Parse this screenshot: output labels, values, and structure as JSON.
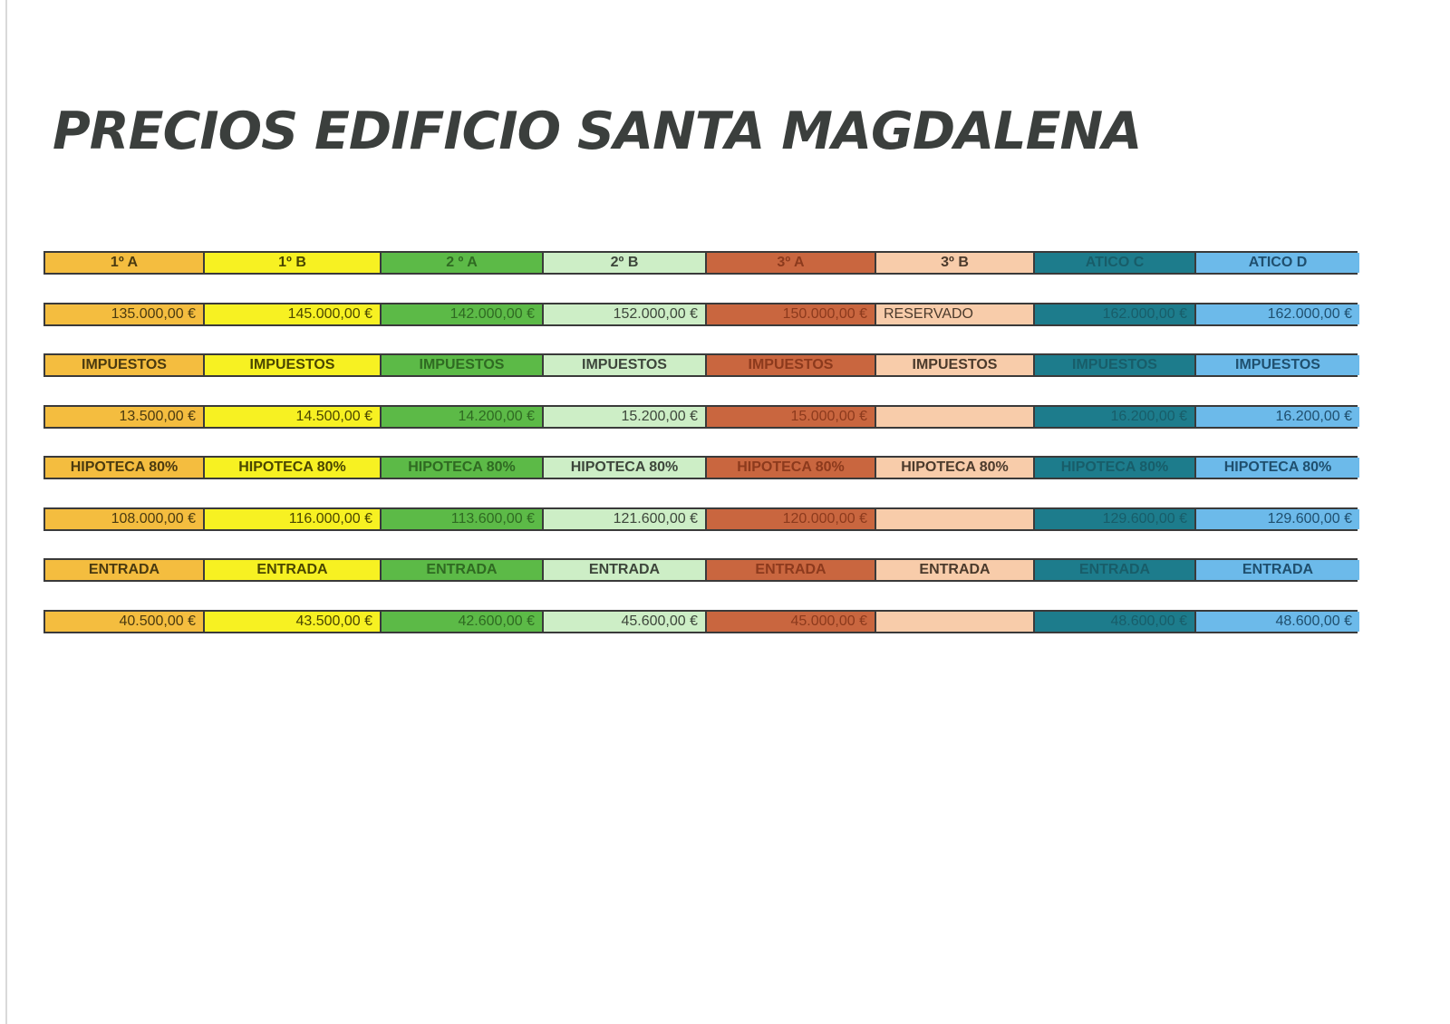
{
  "title": "PRECIOS EDIFICIO SANTA MAGDALENA",
  "units": [
    {
      "name": "1º A",
      "bg": "#f4bd3f",
      "fg": "#4a3a10"
    },
    {
      "name": "1º B",
      "bg": "#f7f122",
      "fg": "#4a4600"
    },
    {
      "name": "2º A",
      "bg": "#5cba47",
      "fg": "#2f6a22"
    },
    {
      "name": "2º B",
      "bg": "#cdeec6",
      "fg": "#3d463b"
    },
    {
      "name": "3º A",
      "bg": "#c9663f",
      "fg": "#8c3a1d"
    },
    {
      "name": "3º B",
      "bg": "#f8ccaa",
      "fg": "#4b3a2c"
    },
    {
      "name": "ATICO C",
      "bg": "#1d7c8c",
      "fg": "#185d69"
    },
    {
      "name": "ATICO D",
      "bg": "#6cbaea",
      "fg": "#1f4f6e"
    }
  ],
  "rows": [
    {
      "type": "label",
      "cells": [
        "1º A",
        "1º B",
        "2 º A",
        "2º B",
        "3º A",
        "3º B",
        "ATICO C",
        "ATICO D"
      ]
    },
    {
      "type": "value",
      "cells": [
        "135.000,00 €",
        "145.000,00 €",
        "142.000,00 €",
        "152.000,00 €",
        "150.000,00 €",
        "RESERVADO",
        "162.000,00 €",
        "162.000,00 €"
      ]
    },
    {
      "type": "label",
      "cells": [
        "IMPUESTOS",
        "IMPUESTOS",
        "IMPUESTOS",
        "IMPUESTOS",
        "IMPUESTOS",
        "IMPUESTOS",
        "IMPUESTOS",
        "IMPUESTOS"
      ]
    },
    {
      "type": "value",
      "cells": [
        "13.500,00 €",
        "14.500,00 €",
        "14.200,00 €",
        "15.200,00 €",
        "15.000,00 €",
        "",
        "16.200,00 €",
        "16.200,00 €"
      ]
    },
    {
      "type": "label",
      "cells": [
        "HIPOTECA 80%",
        "HIPOTECA 80%",
        "HIPOTECA 80%",
        "HIPOTECA 80%",
        "HIPOTECA 80%",
        "HIPOTECA 80%",
        "HIPOTECA 80%",
        "HIPOTECA 80%"
      ]
    },
    {
      "type": "value",
      "cells": [
        "108.000,00 €",
        "116.000,00 €",
        "113.600,00 €",
        "121.600,00 €",
        "120.000,00 €",
        "",
        "129.600,00 €",
        "129.600,00 €"
      ]
    },
    {
      "type": "label",
      "cells": [
        "ENTRADA",
        "ENTRADA",
        "ENTRADA",
        "ENTRADA",
        "ENTRADA",
        "ENTRADA",
        "ENTRADA",
        "ENTRADA"
      ]
    },
    {
      "type": "value",
      "cells": [
        "40.500,00 €",
        "43.500,00 €",
        "42.600,00 €",
        "45.600,00 €",
        "45.000,00 €",
        "",
        "48.600,00 €",
        "48.600,00 €"
      ]
    }
  ]
}
